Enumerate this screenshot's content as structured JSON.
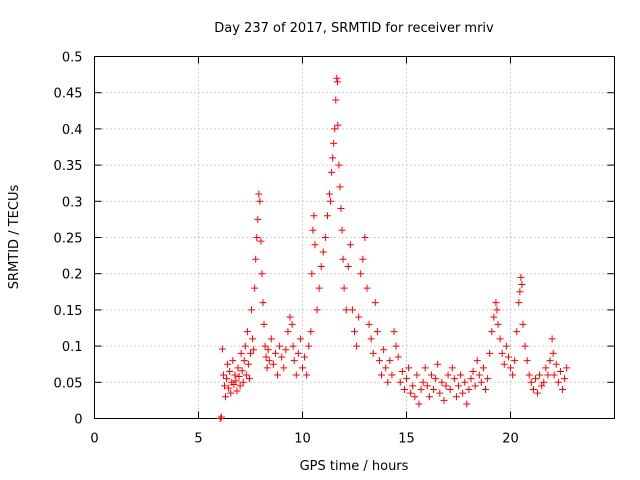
{
  "chart_data": {
    "type": "scatter",
    "title": "Day 237 of 2017, SRMTID for receiver mriv",
    "xlabel": "GPS time / hours",
    "ylabel": "SRMTID / TECUs",
    "xlim": [
      0,
      25
    ],
    "ylim": [
      0,
      0.5
    ],
    "x_ticks": [
      0,
      5,
      10,
      15,
      20
    ],
    "x_tick_labels": [
      "0",
      "5",
      "10",
      "15",
      "20"
    ],
    "y_ticks": [
      0,
      0.05,
      0.1,
      0.15,
      0.2,
      0.25,
      0.3,
      0.35,
      0.4,
      0.45,
      0.5
    ],
    "y_tick_labels": [
      "0",
      "0.05",
      "0.1",
      "0.15",
      "0.2",
      "0.25",
      "0.3",
      "0.35",
      "0.4",
      "0.45",
      "0.5"
    ],
    "grid": true,
    "marker": "plus",
    "color": "#ff0000",
    "series": [
      {
        "points": [
          [
            6.05,
            0.0
          ],
          [
            6.1,
            0.002
          ],
          [
            6.15,
            0.096
          ],
          [
            6.2,
            0.06
          ],
          [
            6.25,
            0.045
          ],
          [
            6.3,
            0.03
          ],
          [
            6.35,
            0.055
          ],
          [
            6.4,
            0.075
          ],
          [
            6.45,
            0.042
          ],
          [
            6.5,
            0.065
          ],
          [
            6.55,
            0.035
          ],
          [
            6.6,
            0.05
          ],
          [
            6.65,
            0.08
          ],
          [
            6.7,
            0.047
          ],
          [
            6.75,
            0.06
          ],
          [
            6.8,
            0.052
          ],
          [
            6.85,
            0.038
          ],
          [
            6.9,
            0.07
          ],
          [
            6.95,
            0.058
          ],
          [
            7.0,
            0.045
          ],
          [
            7.05,
            0.09
          ],
          [
            7.1,
            0.066
          ],
          [
            7.15,
            0.05
          ],
          [
            7.2,
            0.08
          ],
          [
            7.25,
            0.1
          ],
          [
            7.3,
            0.06
          ],
          [
            7.35,
            0.12
          ],
          [
            7.4,
            0.075
          ],
          [
            7.45,
            0.055
          ],
          [
            7.5,
            0.09
          ],
          [
            7.55,
            0.15
          ],
          [
            7.6,
            0.11
          ],
          [
            7.65,
            0.095
          ],
          [
            7.7,
            0.18
          ],
          [
            7.75,
            0.22
          ],
          [
            7.8,
            0.25
          ],
          [
            7.85,
            0.275
          ],
          [
            7.9,
            0.31
          ],
          [
            7.95,
            0.3
          ],
          [
            8.0,
            0.245
          ],
          [
            8.05,
            0.2
          ],
          [
            8.1,
            0.16
          ],
          [
            8.15,
            0.13
          ],
          [
            8.2,
            0.1
          ],
          [
            8.25,
            0.085
          ],
          [
            8.3,
            0.07
          ],
          [
            8.35,
            0.095
          ],
          [
            8.4,
            0.08
          ],
          [
            8.5,
            0.11
          ],
          [
            8.6,
            0.075
          ],
          [
            8.7,
            0.09
          ],
          [
            8.8,
            0.06
          ],
          [
            8.9,
            0.1
          ],
          [
            9.0,
            0.085
          ],
          [
            9.1,
            0.07
          ],
          [
            9.2,
            0.095
          ],
          [
            9.3,
            0.12
          ],
          [
            9.4,
            0.14
          ],
          [
            9.5,
            0.13
          ],
          [
            9.55,
            0.1
          ],
          [
            9.6,
            0.08
          ],
          [
            9.7,
            0.06
          ],
          [
            9.8,
            0.09
          ],
          [
            9.9,
            0.11
          ],
          [
            10.0,
            0.07
          ],
          [
            10.1,
            0.085
          ],
          [
            10.2,
            0.06
          ],
          [
            10.3,
            0.1
          ],
          [
            10.4,
            0.12
          ],
          [
            10.45,
            0.2
          ],
          [
            10.5,
            0.26
          ],
          [
            10.55,
            0.28
          ],
          [
            10.6,
            0.24
          ],
          [
            10.7,
            0.15
          ],
          [
            10.8,
            0.18
          ],
          [
            10.9,
            0.21
          ],
          [
            11.0,
            0.23
          ],
          [
            11.1,
            0.25
          ],
          [
            11.2,
            0.28
          ],
          [
            11.3,
            0.31
          ],
          [
            11.35,
            0.3
          ],
          [
            11.4,
            0.34
          ],
          [
            11.45,
            0.36
          ],
          [
            11.5,
            0.38
          ],
          [
            11.55,
            0.4
          ],
          [
            11.6,
            0.44
          ],
          [
            11.65,
            0.47
          ],
          [
            11.68,
            0.465
          ],
          [
            11.7,
            0.405
          ],
          [
            11.75,
            0.35
          ],
          [
            11.8,
            0.32
          ],
          [
            11.85,
            0.29
          ],
          [
            11.9,
            0.26
          ],
          [
            11.95,
            0.22
          ],
          [
            12.0,
            0.18
          ],
          [
            12.1,
            0.15
          ],
          [
            12.2,
            0.21
          ],
          [
            12.3,
            0.24
          ],
          [
            12.4,
            0.15
          ],
          [
            12.5,
            0.12
          ],
          [
            12.6,
            0.1
          ],
          [
            12.7,
            0.14
          ],
          [
            12.8,
            0.2
          ],
          [
            12.9,
            0.22
          ],
          [
            13.0,
            0.25
          ],
          [
            13.1,
            0.18
          ],
          [
            13.2,
            0.13
          ],
          [
            13.3,
            0.11
          ],
          [
            13.4,
            0.09
          ],
          [
            13.5,
            0.16
          ],
          [
            13.6,
            0.12
          ],
          [
            13.7,
            0.08
          ],
          [
            13.8,
            0.06
          ],
          [
            13.9,
            0.095
          ],
          [
            14.0,
            0.07
          ],
          [
            14.1,
            0.05
          ],
          [
            14.2,
            0.08
          ],
          [
            14.3,
            0.06
          ],
          [
            14.4,
            0.12
          ],
          [
            14.5,
            0.1
          ],
          [
            14.6,
            0.085
          ],
          [
            14.7,
            0.05
          ],
          [
            14.8,
            0.065
          ],
          [
            14.9,
            0.04
          ],
          [
            15.0,
            0.055
          ],
          [
            15.1,
            0.07
          ],
          [
            15.2,
            0.035
          ],
          [
            15.3,
            0.045
          ],
          [
            15.4,
            0.03
          ],
          [
            15.5,
            0.06
          ],
          [
            15.6,
            0.02
          ],
          [
            15.7,
            0.04
          ],
          [
            15.8,
            0.05
          ],
          [
            15.9,
            0.07
          ],
          [
            16.0,
            0.045
          ],
          [
            16.1,
            0.03
          ],
          [
            16.2,
            0.06
          ],
          [
            16.3,
            0.04
          ],
          [
            16.4,
            0.055
          ],
          [
            16.5,
            0.075
          ],
          [
            16.6,
            0.035
          ],
          [
            16.7,
            0.05
          ],
          [
            16.8,
            0.025
          ],
          [
            16.9,
            0.045
          ],
          [
            17.0,
            0.06
          ],
          [
            17.1,
            0.04
          ],
          [
            17.2,
            0.07
          ],
          [
            17.3,
            0.055
          ],
          [
            17.4,
            0.03
          ],
          [
            17.5,
            0.045
          ],
          [
            17.6,
            0.06
          ],
          [
            17.7,
            0.035
          ],
          [
            17.8,
            0.05
          ],
          [
            17.9,
            0.02
          ],
          [
            18.0,
            0.04
          ],
          [
            18.1,
            0.055
          ],
          [
            18.2,
            0.065
          ],
          [
            18.3,
            0.045
          ],
          [
            18.4,
            0.08
          ],
          [
            18.5,
            0.06
          ],
          [
            18.6,
            0.05
          ],
          [
            18.7,
            0.07
          ],
          [
            18.8,
            0.04
          ],
          [
            18.9,
            0.055
          ],
          [
            19.0,
            0.09
          ],
          [
            19.1,
            0.12
          ],
          [
            19.2,
            0.14
          ],
          [
            19.3,
            0.16
          ],
          [
            19.35,
            0.15
          ],
          [
            19.4,
            0.13
          ],
          [
            19.5,
            0.11
          ],
          [
            19.6,
            0.09
          ],
          [
            19.7,
            0.075
          ],
          [
            19.8,
            0.1
          ],
          [
            19.9,
            0.085
          ],
          [
            20.0,
            0.07
          ],
          [
            20.1,
            0.06
          ],
          [
            20.2,
            0.08
          ],
          [
            20.3,
            0.12
          ],
          [
            20.4,
            0.16
          ],
          [
            20.45,
            0.175
          ],
          [
            20.5,
            0.195
          ],
          [
            20.55,
            0.185
          ],
          [
            20.6,
            0.13
          ],
          [
            20.7,
            0.1
          ],
          [
            20.8,
            0.08
          ],
          [
            20.9,
            0.06
          ],
          [
            21.0,
            0.05
          ],
          [
            21.1,
            0.04
          ],
          [
            21.2,
            0.055
          ],
          [
            21.3,
            0.035
          ],
          [
            21.4,
            0.06
          ],
          [
            21.5,
            0.045
          ],
          [
            21.6,
            0.05
          ],
          [
            21.7,
            0.07
          ],
          [
            21.8,
            0.06
          ],
          [
            21.9,
            0.08
          ],
          [
            22.0,
            0.11
          ],
          [
            22.05,
            0.09
          ],
          [
            22.1,
            0.06
          ],
          [
            22.2,
            0.075
          ],
          [
            22.3,
            0.05
          ],
          [
            22.4,
            0.065
          ],
          [
            22.5,
            0.04
          ],
          [
            22.6,
            0.055
          ],
          [
            22.7,
            0.07
          ]
        ]
      }
    ]
  }
}
